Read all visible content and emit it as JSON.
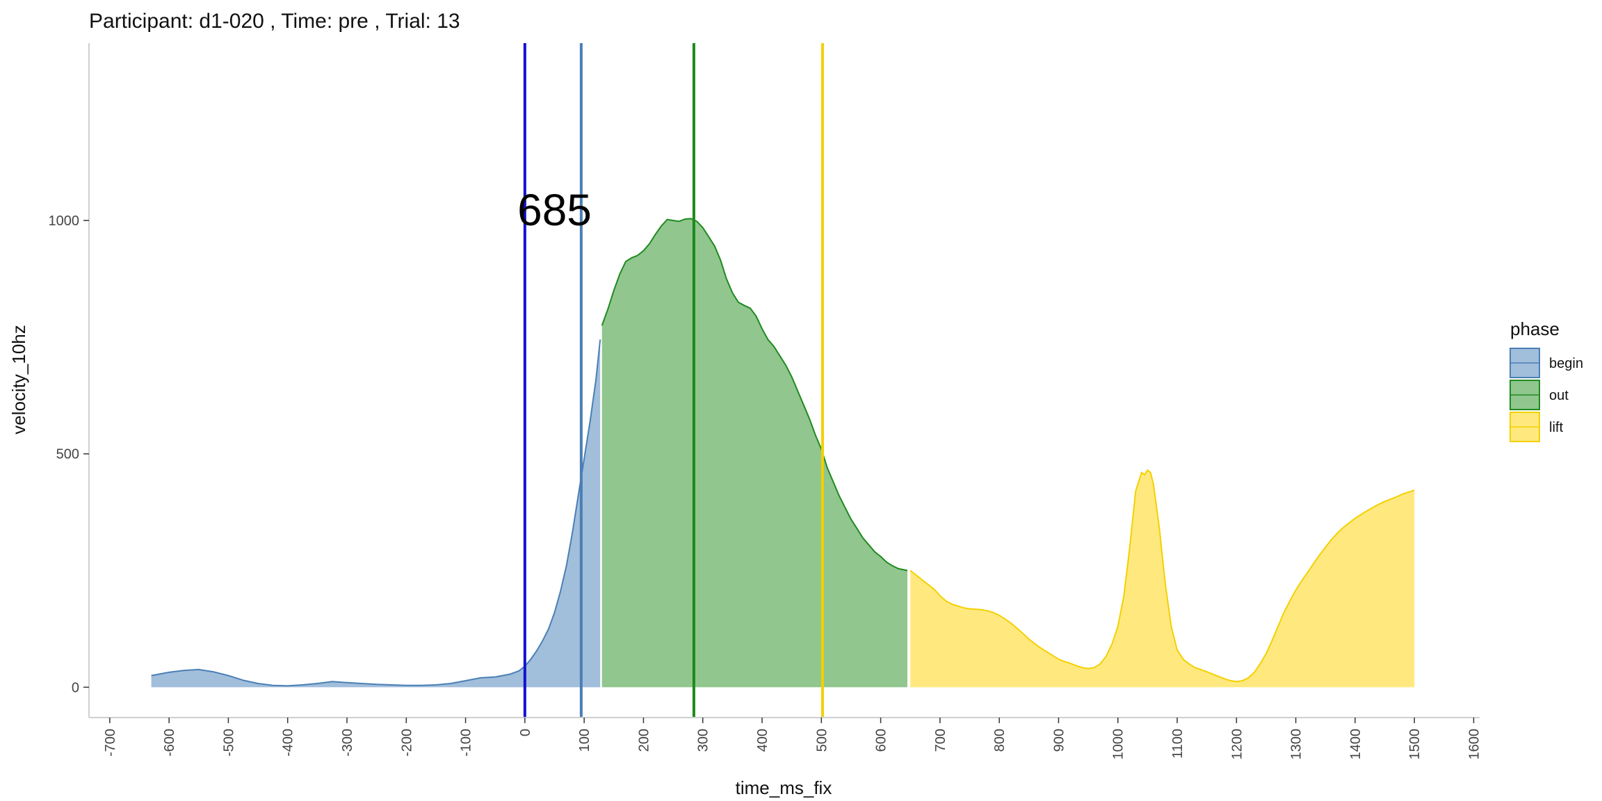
{
  "chart_data": {
    "type": "area",
    "title": "Participant:  d1-020 , Time: pre , Trial:  13",
    "xlabel": "time_ms_fix",
    "ylabel": "velocity_10hz",
    "xlim": [
      -735,
      1610
    ],
    "ylim": [
      -65,
      1380
    ],
    "x_ticks": [
      -700,
      -600,
      -500,
      -400,
      -300,
      -200,
      -100,
      0,
      100,
      200,
      300,
      400,
      500,
      600,
      700,
      800,
      900,
      1000,
      1100,
      1200,
      1300,
      1400,
      1500,
      1600
    ],
    "y_ticks": [
      0,
      500,
      1000
    ],
    "grid": false,
    "legend": {
      "title": "phase",
      "position": "right",
      "entries": [
        "begin",
        "out",
        "lift"
      ]
    },
    "series": [
      {
        "name": "begin",
        "fill": "#a1bedb",
        "line": "#4a7fb5",
        "points": [
          [
            -630,
            25
          ],
          [
            -600,
            32
          ],
          [
            -575,
            36
          ],
          [
            -550,
            38
          ],
          [
            -525,
            33
          ],
          [
            -500,
            25
          ],
          [
            -475,
            15
          ],
          [
            -450,
            8
          ],
          [
            -425,
            4
          ],
          [
            -400,
            3
          ],
          [
            -375,
            5
          ],
          [
            -350,
            8
          ],
          [
            -325,
            12
          ],
          [
            -300,
            10
          ],
          [
            -275,
            8
          ],
          [
            -250,
            6
          ],
          [
            -225,
            5
          ],
          [
            -200,
            4
          ],
          [
            -175,
            4
          ],
          [
            -150,
            5
          ],
          [
            -125,
            8
          ],
          [
            -100,
            14
          ],
          [
            -75,
            20
          ],
          [
            -50,
            22
          ],
          [
            -25,
            28
          ],
          [
            -10,
            35
          ],
          [
            0,
            45
          ],
          [
            10,
            60
          ],
          [
            20,
            78
          ],
          [
            30,
            100
          ],
          [
            40,
            125
          ],
          [
            50,
            160
          ],
          [
            60,
            205
          ],
          [
            70,
            260
          ],
          [
            80,
            330
          ],
          [
            90,
            410
          ],
          [
            100,
            490
          ],
          [
            110,
            570
          ],
          [
            120,
            660
          ],
          [
            127,
            745
          ]
        ]
      },
      {
        "name": "out",
        "fill": "#91c68e",
        "line": "#1e8a1e",
        "points": [
          [
            130,
            775
          ],
          [
            140,
            810
          ],
          [
            150,
            850
          ],
          [
            160,
            885
          ],
          [
            170,
            912
          ],
          [
            180,
            920
          ],
          [
            190,
            925
          ],
          [
            200,
            935
          ],
          [
            210,
            950
          ],
          [
            220,
            970
          ],
          [
            230,
            988
          ],
          [
            240,
            1002
          ],
          [
            250,
            1000
          ],
          [
            260,
            998
          ],
          [
            270,
            1003
          ],
          [
            280,
            1004
          ],
          [
            290,
            998
          ],
          [
            300,
            985
          ],
          [
            310,
            965
          ],
          [
            320,
            945
          ],
          [
            330,
            915
          ],
          [
            340,
            875
          ],
          [
            350,
            845
          ],
          [
            360,
            825
          ],
          [
            370,
            818
          ],
          [
            380,
            812
          ],
          [
            390,
            795
          ],
          [
            400,
            768
          ],
          [
            410,
            745
          ],
          [
            420,
            730
          ],
          [
            430,
            710
          ],
          [
            440,
            690
          ],
          [
            450,
            665
          ],
          [
            460,
            635
          ],
          [
            470,
            605
          ],
          [
            480,
            575
          ],
          [
            490,
            540
          ],
          [
            500,
            510
          ],
          [
            510,
            470
          ],
          [
            520,
            440
          ],
          [
            530,
            410
          ],
          [
            540,
            385
          ],
          [
            550,
            360
          ],
          [
            560,
            340
          ],
          [
            570,
            320
          ],
          [
            580,
            305
          ],
          [
            590,
            290
          ],
          [
            600,
            280
          ],
          [
            610,
            268
          ],
          [
            620,
            260
          ],
          [
            630,
            254
          ],
          [
            645,
            250
          ]
        ]
      },
      {
        "name": "lift",
        "fill": "#ffe97f",
        "line": "#f4d000",
        "points": [
          [
            650,
            250
          ],
          [
            660,
            240
          ],
          [
            670,
            230
          ],
          [
            680,
            220
          ],
          [
            690,
            210
          ],
          [
            700,
            196
          ],
          [
            710,
            185
          ],
          [
            720,
            178
          ],
          [
            730,
            174
          ],
          [
            740,
            170
          ],
          [
            750,
            168
          ],
          [
            760,
            167
          ],
          [
            770,
            166
          ],
          [
            780,
            164
          ],
          [
            790,
            160
          ],
          [
            800,
            154
          ],
          [
            810,
            146
          ],
          [
            820,
            137
          ],
          [
            830,
            126
          ],
          [
            840,
            115
          ],
          [
            850,
            103
          ],
          [
            860,
            93
          ],
          [
            870,
            84
          ],
          [
            880,
            76
          ],
          [
            890,
            68
          ],
          [
            900,
            60
          ],
          [
            910,
            55
          ],
          [
            920,
            51
          ],
          [
            930,
            46
          ],
          [
            940,
            42
          ],
          [
            950,
            40
          ],
          [
            960,
            42
          ],
          [
            970,
            50
          ],
          [
            980,
            66
          ],
          [
            990,
            92
          ],
          [
            1000,
            130
          ],
          [
            1010,
            195
          ],
          [
            1020,
            300
          ],
          [
            1030,
            420
          ],
          [
            1040,
            460
          ],
          [
            1045,
            455
          ],
          [
            1050,
            465
          ],
          [
            1055,
            460
          ],
          [
            1060,
            435
          ],
          [
            1070,
            340
          ],
          [
            1080,
            220
          ],
          [
            1090,
            130
          ],
          [
            1100,
            80
          ],
          [
            1110,
            60
          ],
          [
            1120,
            50
          ],
          [
            1130,
            42
          ],
          [
            1140,
            38
          ],
          [
            1150,
            33
          ],
          [
            1160,
            28
          ],
          [
            1170,
            23
          ],
          [
            1180,
            18
          ],
          [
            1190,
            14
          ],
          [
            1200,
            12
          ],
          [
            1210,
            14
          ],
          [
            1220,
            20
          ],
          [
            1230,
            32
          ],
          [
            1240,
            50
          ],
          [
            1250,
            72
          ],
          [
            1260,
            100
          ],
          [
            1270,
            130
          ],
          [
            1280,
            160
          ],
          [
            1290,
            185
          ],
          [
            1300,
            208
          ],
          [
            1310,
            228
          ],
          [
            1320,
            246
          ],
          [
            1330,
            265
          ],
          [
            1340,
            283
          ],
          [
            1350,
            300
          ],
          [
            1360,
            316
          ],
          [
            1370,
            330
          ],
          [
            1380,
            342
          ],
          [
            1390,
            352
          ],
          [
            1400,
            362
          ],
          [
            1410,
            370
          ],
          [
            1420,
            378
          ],
          [
            1430,
            385
          ],
          [
            1440,
            392
          ],
          [
            1450,
            398
          ],
          [
            1460,
            403
          ],
          [
            1470,
            408
          ],
          [
            1480,
            414
          ],
          [
            1490,
            418
          ],
          [
            1500,
            422
          ]
        ]
      }
    ],
    "vlines": [
      {
        "x": 0,
        "color": "#1212d2"
      },
      {
        "x": 95,
        "color": "#4a7fb5"
      },
      {
        "x": 285,
        "color": "#1e8a1e"
      },
      {
        "x": 502,
        "color": "#f4d000"
      }
    ],
    "annotations": [
      {
        "text": "685",
        "x": 50,
        "y": 990
      }
    ]
  }
}
